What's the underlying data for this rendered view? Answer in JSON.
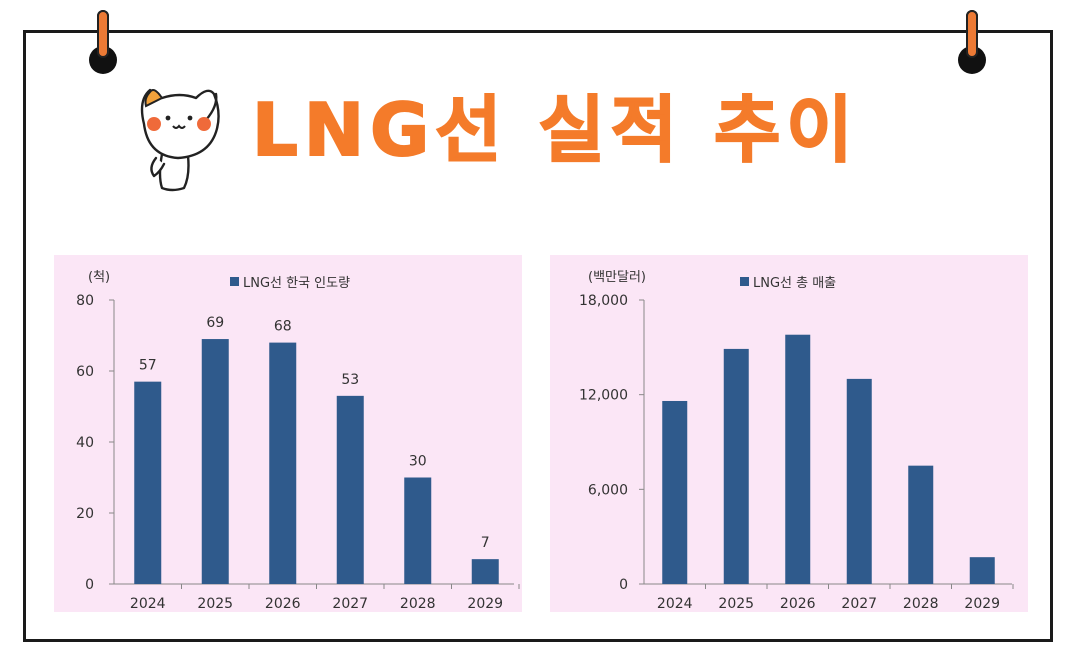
{
  "header": {
    "title": "LNG선 실적 추이"
  },
  "colors": {
    "accent": "#f47b2a",
    "bar": "#2f5a8c",
    "panel_bg": "#fbe6f6"
  },
  "icons": {
    "mascot": "cat-mascot-icon",
    "pin": "pushpin-icon"
  },
  "chart_data": [
    {
      "type": "bar",
      "title": "",
      "legend": "LNG선 한국 인도량",
      "unit_label": "(척)",
      "xlabel": "",
      "ylabel": "(척)",
      "categories": [
        "2024",
        "2025",
        "2026",
        "2027",
        "2028",
        "2029"
      ],
      "values": [
        57,
        69,
        68,
        53,
        30,
        7
      ],
      "data_labels": [
        "57",
        "69",
        "68",
        "53",
        "30",
        "7"
      ],
      "ylim": [
        0,
        80
      ],
      "yticks": [
        0,
        20,
        40,
        60,
        80
      ],
      "ytick_labels": [
        "0",
        "20",
        "40",
        "60",
        "80"
      ],
      "grid": false
    },
    {
      "type": "bar",
      "title": "",
      "legend": "LNG선 총 매출",
      "unit_label": "(백만달러)",
      "xlabel": "",
      "ylabel": "(백만달러)",
      "categories": [
        "2024",
        "2025",
        "2026",
        "2027",
        "2028",
        "2029"
      ],
      "values": [
        11600,
        14900,
        15800,
        13000,
        7500,
        1700
      ],
      "data_labels": [],
      "ylim": [
        0,
        18000
      ],
      "yticks": [
        0,
        6000,
        12000,
        18000
      ],
      "ytick_labels": [
        "0",
        "6,000",
        "12,000",
        "18,000"
      ],
      "grid": false
    }
  ]
}
